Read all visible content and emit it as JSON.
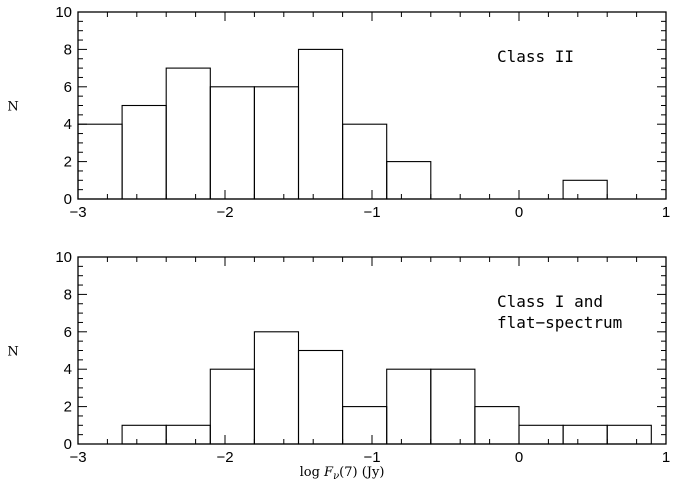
{
  "chart_data": [
    {
      "type": "bar",
      "panel": "top",
      "bin_edges": [
        -3.0,
        -2.7,
        -2.4,
        -2.1,
        -1.8,
        -1.5,
        -1.2,
        -0.9,
        -0.6,
        -0.3,
        0.0,
        0.3,
        0.6,
        0.9
      ],
      "values": [
        4,
        5,
        7,
        6,
        6,
        8,
        4,
        2,
        0,
        0,
        0,
        1,
        0
      ],
      "xlim": [
        -3,
        1
      ],
      "ylim": [
        0,
        10
      ],
      "xticks": [
        "−3",
        "−2",
        "−1",
        "0",
        "1"
      ],
      "yticks": [
        "0",
        "2",
        "4",
        "6",
        "8",
        "10"
      ],
      "ylabel": "N",
      "xlabel": "",
      "annotation": [
        "Class  II"
      ]
    },
    {
      "type": "bar",
      "panel": "bottom",
      "bin_edges": [
        -3.0,
        -2.7,
        -2.4,
        -2.1,
        -1.8,
        -1.5,
        -1.2,
        -0.9,
        -0.6,
        -0.3,
        0.0,
        0.3,
        0.6,
        0.9
      ],
      "values": [
        0,
        1,
        1,
        4,
        6,
        5,
        2,
        4,
        4,
        2,
        1,
        1,
        1
      ],
      "xlim": [
        -3,
        1
      ],
      "ylim": [
        0,
        10
      ],
      "xticks": [
        "−3",
        "−2",
        "−1",
        "0",
        "1"
      ],
      "yticks": [
        "0",
        "2",
        "4",
        "6",
        "8",
        "10"
      ],
      "ylabel": "N",
      "xlabel": "log  Fν(7)  (Jy)",
      "annotation": [
        "Class I and",
        "flat−spectrum"
      ]
    }
  ]
}
